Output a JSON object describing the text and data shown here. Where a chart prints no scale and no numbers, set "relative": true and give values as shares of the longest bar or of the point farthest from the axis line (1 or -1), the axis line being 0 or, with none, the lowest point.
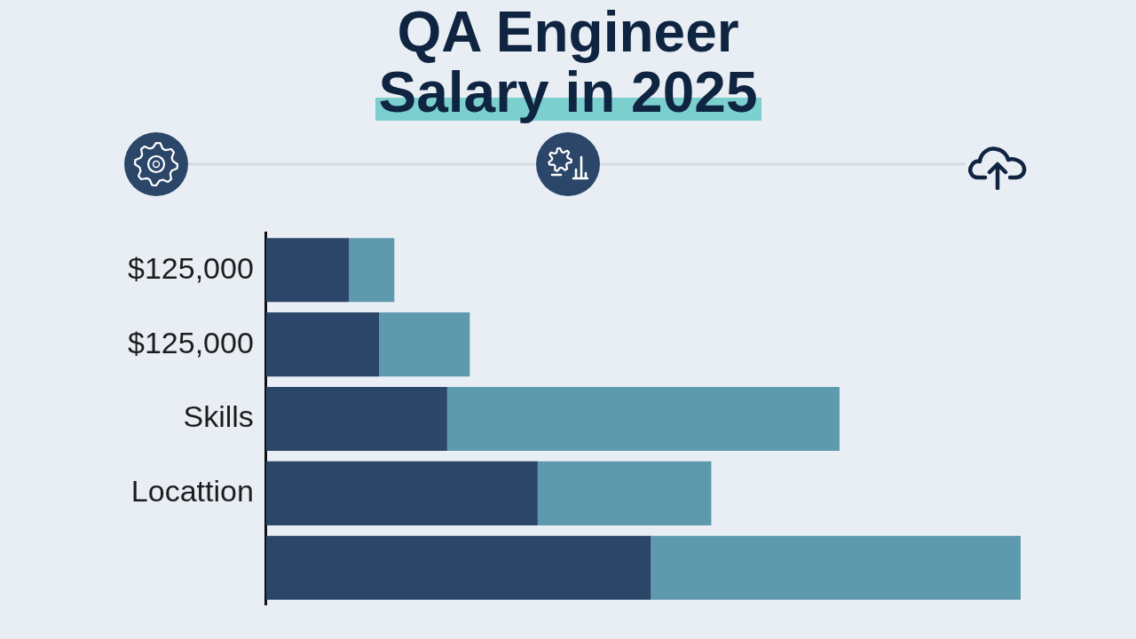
{
  "chart_data": {
    "type": "bar",
    "title": "QA Engineer Salary in 2025",
    "orientation": "horizontal",
    "stacked": true,
    "relative": true,
    "categories": [
      "$125,000",
      "$125,000",
      "Skills",
      "Locattion",
      null
    ],
    "series": [
      {
        "color": "#2b4668",
        "values": [
          0.11,
          0.15,
          0.24,
          0.36,
          0.51
        ]
      },
      {
        "color": "#5e9aae",
        "values": [
          0.06,
          0.12,
          0.52,
          0.23,
          0.49
        ]
      }
    ]
  }
}
